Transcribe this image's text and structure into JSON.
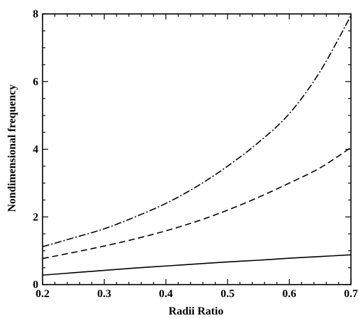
{
  "chart_data": {
    "type": "line",
    "title": "",
    "xlabel": "Radii Ratio",
    "ylabel": "Nondimensional frequency",
    "xlim": [
      0.2,
      0.7
    ],
    "ylim": [
      0,
      8
    ],
    "xticks": [
      "0.2",
      "0.3",
      "0.4",
      "0.5",
      "0.6",
      "0.7"
    ],
    "yticks": [
      "0",
      "2",
      "4",
      "6",
      "8"
    ],
    "grid": false,
    "legend": "none",
    "x": [
      0.2,
      0.25,
      0.3,
      0.35,
      0.4,
      0.45,
      0.5,
      0.55,
      0.6,
      0.65,
      0.7
    ],
    "series": [
      {
        "style": "solid",
        "color": "#000000",
        "values": [
          0.28,
          0.35,
          0.42,
          0.49,
          0.55,
          0.61,
          0.67,
          0.72,
          0.78,
          0.83,
          0.88
        ]
      },
      {
        "style": "dashed",
        "color": "#000000",
        "values": [
          0.77,
          0.95,
          1.14,
          1.35,
          1.59,
          1.87,
          2.2,
          2.58,
          3.0,
          3.45,
          4.05
        ]
      },
      {
        "style": "dash-dot",
        "color": "#000000",
        "values": [
          1.12,
          1.38,
          1.65,
          2.0,
          2.4,
          2.9,
          3.5,
          4.2,
          5.05,
          6.3,
          7.95
        ]
      }
    ]
  }
}
